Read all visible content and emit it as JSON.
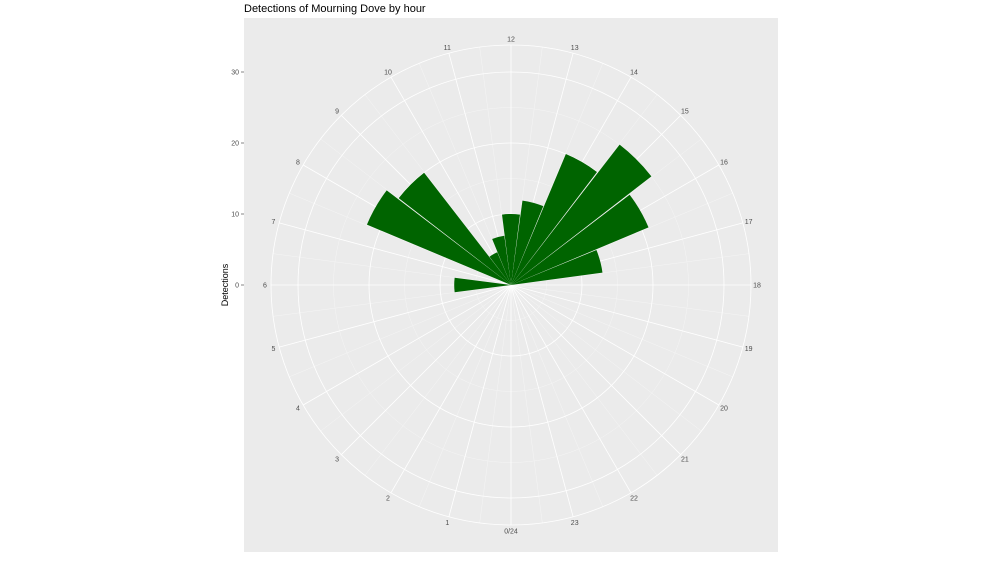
{
  "chart_data": {
    "type": "bar",
    "coord": "polar",
    "title": "Detections of Mourning Dove by hour",
    "xlabel": "",
    "ylabel": "Detections",
    "ylim": [
      0,
      30
    ],
    "y_ticks": [
      0,
      10,
      20,
      30
    ],
    "categories": [
      "0/24",
      "1",
      "2",
      "3",
      "4",
      "5",
      "6",
      "7",
      "8",
      "9",
      "10",
      "11",
      "12",
      "13",
      "14",
      "15",
      "16",
      "17",
      "18",
      "19",
      "20",
      "21",
      "22",
      "23"
    ],
    "values": [
      0,
      0,
      0,
      0,
      0,
      0,
      8,
      0,
      22,
      20,
      5,
      7,
      10,
      12,
      20,
      25,
      21,
      13,
      0,
      0,
      0,
      0,
      0,
      0
    ],
    "bar_color": "#006400",
    "panel_color": "#ebebeb",
    "grid": true,
    "legend": "none"
  }
}
